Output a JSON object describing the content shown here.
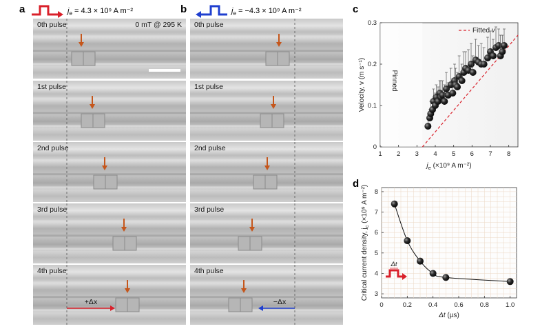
{
  "panels": {
    "a": {
      "label": "a",
      "current_text": "j",
      "current_sub": "e",
      "current_value": " = 4.3 × 10⁹ A m⁻²",
      "field_note": "0 mT @ 295 K",
      "pulse_labels": [
        "0th pulse",
        "1st pulse",
        "2nd pulse",
        "3rd pulse",
        "4th pulse"
      ],
      "displacement_label": "+Δx",
      "color": "#d9202a"
    },
    "b": {
      "label": "b",
      "current_text": "j",
      "current_sub": "e",
      "current_value": " = −4.3 × 10⁹ A m⁻²",
      "pulse_labels": [
        "0th pulse",
        "1st pulse",
        "2nd pulse",
        "3rd pulse",
        "4th pulse"
      ],
      "displacement_label": "−Δx",
      "color": "#1f3fcf"
    },
    "c": {
      "label": "c"
    },
    "d": {
      "label": "d"
    }
  },
  "chart_data": [
    {
      "id": "c",
      "type": "scatter",
      "xlabel_main": "j",
      "xlabel_sub": "e",
      "xlabel_unit": " (×10⁹ A m⁻²)",
      "ylabel": "Velocity, v (m s⁻¹)",
      "xlim": [
        1,
        8.5
      ],
      "ylim": [
        0,
        0.3
      ],
      "xticks": [
        1,
        2,
        3,
        4,
        5,
        6,
        7,
        8
      ],
      "yticks": [
        0,
        0.1,
        0.2,
        0.3
      ],
      "ytick_labels": [
        "0",
        "0.1",
        "0.2",
        "0.3"
      ],
      "region_label": "Pinned",
      "legend": {
        "label_main": "Fitted ",
        "label_var": "v",
        "position": "top-right"
      },
      "fit_line": {
        "x": [
          3.3,
          8.5
        ],
        "y": [
          0,
          0.27
        ]
      },
      "points": [
        {
          "x": 3.6,
          "y": 0.05,
          "err": 0.02
        },
        {
          "x": 3.7,
          "y": 0.07,
          "err": 0.02
        },
        {
          "x": 3.75,
          "y": 0.08,
          "err": 0.03
        },
        {
          "x": 3.85,
          "y": 0.09,
          "err": 0.025
        },
        {
          "x": 3.9,
          "y": 0.11,
          "err": 0.03
        },
        {
          "x": 4.0,
          "y": 0.1,
          "err": 0.03
        },
        {
          "x": 4.05,
          "y": 0.12,
          "err": 0.03
        },
        {
          "x": 4.15,
          "y": 0.11,
          "err": 0.035
        },
        {
          "x": 4.25,
          "y": 0.13,
          "err": 0.03
        },
        {
          "x": 4.3,
          "y": 0.12,
          "err": 0.04
        },
        {
          "x": 4.4,
          "y": 0.125,
          "err": 0.035
        },
        {
          "x": 4.5,
          "y": 0.11,
          "err": 0.04
        },
        {
          "x": 4.6,
          "y": 0.14,
          "err": 0.04
        },
        {
          "x": 4.7,
          "y": 0.125,
          "err": 0.03
        },
        {
          "x": 4.85,
          "y": 0.15,
          "err": 0.04
        },
        {
          "x": 4.95,
          "y": 0.13,
          "err": 0.035
        },
        {
          "x": 5.05,
          "y": 0.16,
          "err": 0.04
        },
        {
          "x": 5.1,
          "y": 0.15,
          "err": 0.04
        },
        {
          "x": 5.2,
          "y": 0.145,
          "err": 0.035
        },
        {
          "x": 5.3,
          "y": 0.17,
          "err": 0.05
        },
        {
          "x": 5.45,
          "y": 0.16,
          "err": 0.04
        },
        {
          "x": 5.55,
          "y": 0.18,
          "err": 0.05
        },
        {
          "x": 5.65,
          "y": 0.19,
          "err": 0.04
        },
        {
          "x": 5.8,
          "y": 0.185,
          "err": 0.05
        },
        {
          "x": 5.95,
          "y": 0.2,
          "err": 0.05
        },
        {
          "x": 6.05,
          "y": 0.18,
          "err": 0.04
        },
        {
          "x": 6.2,
          "y": 0.21,
          "err": 0.05
        },
        {
          "x": 6.35,
          "y": 0.205,
          "err": 0.04
        },
        {
          "x": 6.5,
          "y": 0.2,
          "err": 0.05
        },
        {
          "x": 6.65,
          "y": 0.2,
          "err": 0.04
        },
        {
          "x": 6.85,
          "y": 0.215,
          "err": 0.05
        },
        {
          "x": 7.0,
          "y": 0.23,
          "err": 0.05
        },
        {
          "x": 7.15,
          "y": 0.22,
          "err": 0.04
        },
        {
          "x": 7.3,
          "y": 0.24,
          "err": 0.05
        },
        {
          "x": 7.45,
          "y": 0.245,
          "err": 0.04
        },
        {
          "x": 7.55,
          "y": 0.22,
          "err": 0.05
        },
        {
          "x": 7.65,
          "y": 0.23,
          "err": 0.04
        },
        {
          "x": 7.75,
          "y": 0.245,
          "err": 0.04
        }
      ]
    },
    {
      "id": "d",
      "type": "line",
      "xlabel_main": "Δt",
      "xlabel_unit": " (µs)",
      "ylabel_main": "Critical current density, j",
      "ylabel_sub": "c",
      "ylabel_unit": " (×10⁹ A m⁻²)",
      "xlim": [
        0,
        1.05
      ],
      "ylim": [
        2.8,
        8.2
      ],
      "xticks": [
        0,
        0.2,
        0.4,
        0.6,
        0.8,
        1.0
      ],
      "xtick_labels": [
        "0",
        "0.2",
        "0.4",
        "0.6",
        "0.8",
        "1.0"
      ],
      "yticks": [
        3,
        4,
        5,
        6,
        7,
        8
      ],
      "grid": true,
      "inset_label": "Δt",
      "x": [
        0.1,
        0.2,
        0.3,
        0.4,
        0.5,
        1.0
      ],
      "y": [
        7.4,
        5.6,
        4.6,
        4.0,
        3.8,
        3.6
      ]
    }
  ]
}
